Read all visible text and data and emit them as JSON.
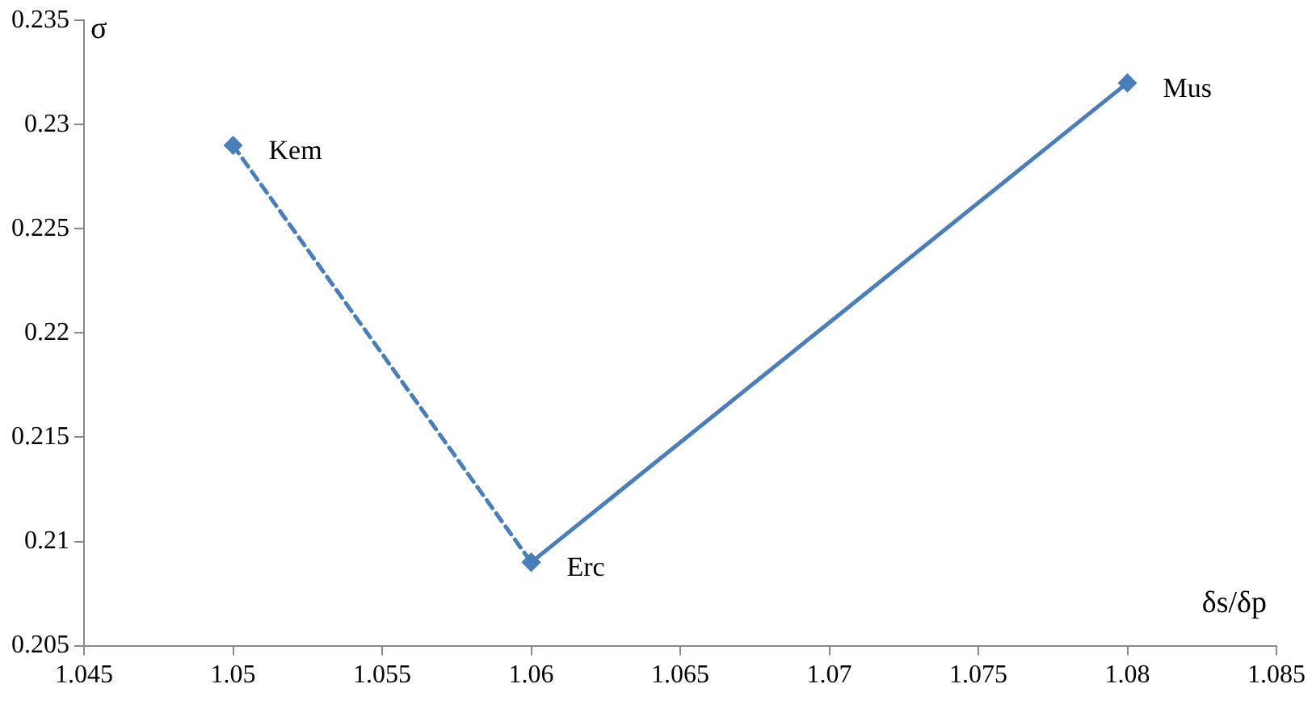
{
  "chart_data": {
    "type": "line",
    "xlabel": "δs/δp",
    "ylabel": "σ",
    "series": [
      {
        "color": "#4a7ebb",
        "x": [
          1.05,
          1.06
        ],
        "values": [
          0.229,
          0.209
        ],
        "line_style": "dashed"
      },
      {
        "color": "#4a7ebb",
        "x": [
          1.06,
          1.08
        ],
        "values": [
          0.209,
          0.232
        ],
        "line_style": "solid"
      }
    ],
    "xlim": [
      1.045,
      1.085
    ],
    "xticks": [
      1.045,
      1.05,
      1.055,
      1.06,
      1.065,
      1.07,
      1.075,
      1.08,
      1.085
    ],
    "ylim": [
      0.205,
      0.235
    ],
    "yticks": [
      0.205,
      0.21,
      0.215,
      0.22,
      0.225,
      0.23,
      0.235
    ],
    "grid": false,
    "legend": false,
    "marker": "diamond",
    "annotations": [
      {
        "text": "Kem",
        "x": 1.05,
        "y": 0.229
      },
      {
        "text": "Erc",
        "x": 1.06,
        "y": 0.209
      },
      {
        "text": "Mus",
        "x": 1.08,
        "y": 0.232
      }
    ]
  }
}
